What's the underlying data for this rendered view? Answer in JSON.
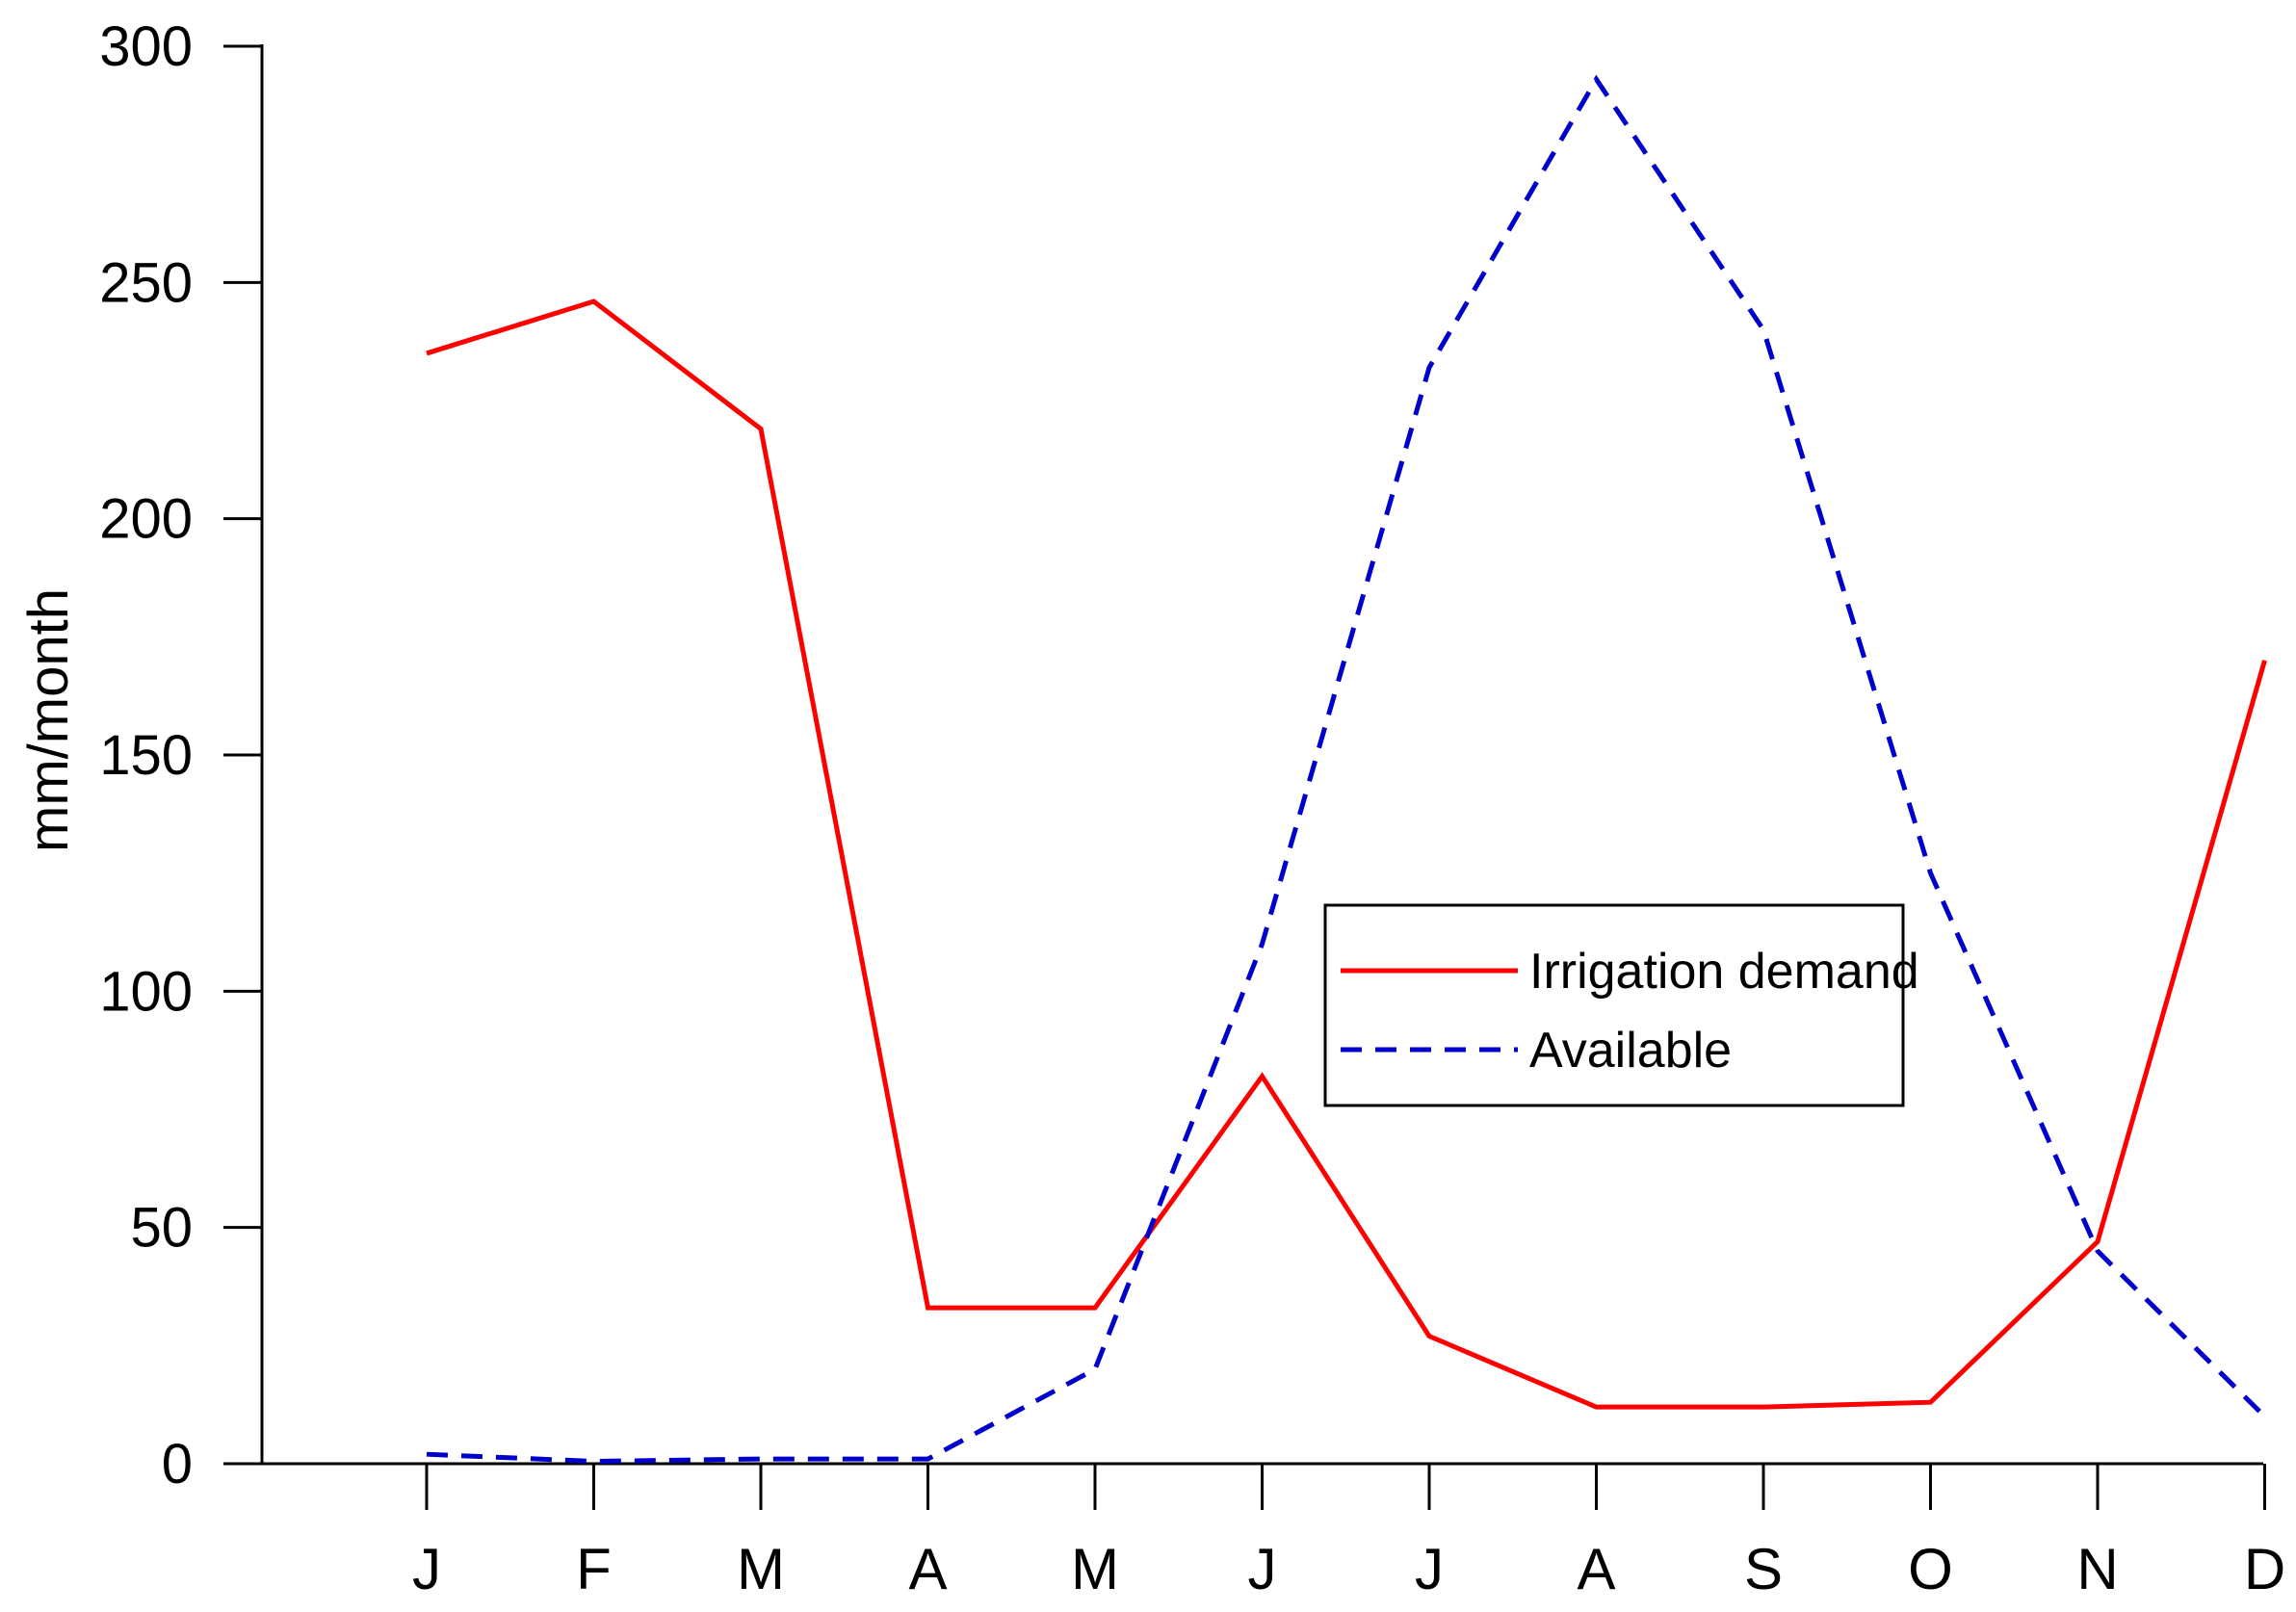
{
  "chart_data": {
    "type": "line",
    "title": "",
    "xlabel": "",
    "ylabel": "mm/month",
    "ylim": [
      0,
      300
    ],
    "yticks": [
      0,
      50,
      100,
      150,
      200,
      250,
      300
    ],
    "categories": [
      "J",
      "F",
      "M",
      "A",
      "M",
      "J",
      "J",
      "A",
      "S",
      "O",
      "N",
      "D"
    ],
    "grid": false,
    "legend_position": "center-right",
    "series": [
      {
        "name": "Irrigation demand",
        "color": "#ff0000",
        "line_style": "solid",
        "values": [
          235,
          246,
          219,
          33,
          33,
          82,
          27,
          12,
          12,
          13,
          47,
          170
        ]
      },
      {
        "name": "Available",
        "color": "#0000cc",
        "line_style": "dashed",
        "values": [
          2,
          0.5,
          1,
          1,
          20,
          110,
          232,
          293,
          240,
          125,
          45,
          10
        ]
      }
    ]
  }
}
